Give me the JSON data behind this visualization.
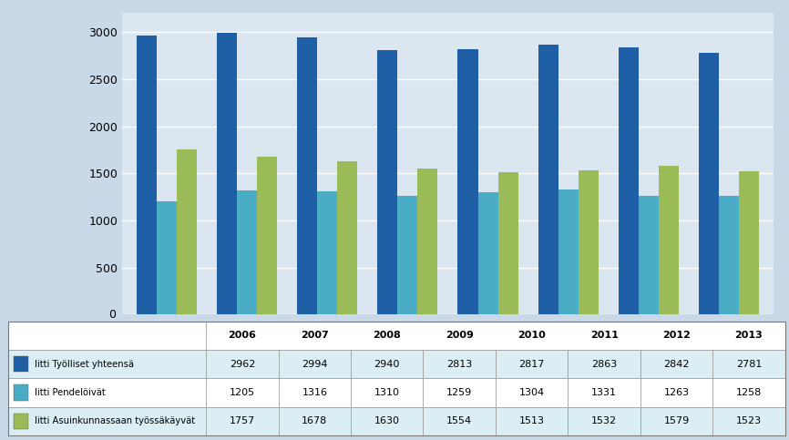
{
  "years": [
    2006,
    2007,
    2008,
    2009,
    2010,
    2011,
    2012,
    2013
  ],
  "series": [
    {
      "label": "Iitti Työlliset yhteensä",
      "values": [
        2962,
        2994,
        2940,
        2813,
        2817,
        2863,
        2842,
        2781
      ],
      "color": "#1F5FA6"
    },
    {
      "label": "Iitti Pendelöivät",
      "values": [
        1205,
        1316,
        1310,
        1259,
        1304,
        1331,
        1263,
        1258
      ],
      "color": "#4BACC6"
    },
    {
      "label": "Iitti Asuinkunnassaan työssäkäyvät",
      "values": [
        1757,
        1678,
        1630,
        1554,
        1513,
        1532,
        1579,
        1523
      ],
      "color": "#9BBB59"
    }
  ],
  "ylim": [
    0,
    3200
  ],
  "yticks": [
    0,
    500,
    1000,
    1500,
    2000,
    2500,
    3000
  ],
  "background_color": "#C9D9E8",
  "plot_background": "#DCE6F1",
  "grid_color": "#FFFFFF",
  "bar_width": 0.25,
  "legend_rows": [
    [
      "Iitti Työlliset yhteensä",
      "2962",
      "2994",
      "2940",
      "2813",
      "2817",
      "2863",
      "2842",
      "2781"
    ],
    [
      "Iitti Pendelöivät",
      "1205",
      "1316",
      "1310",
      "1259",
      "1304",
      "1331",
      "1263",
      "1258"
    ],
    [
      "Iitti Asuinkunnassaan työssäkäyvät",
      "1757",
      "1678",
      "1630",
      "1554",
      "1513",
      "1532",
      "1579",
      "1523"
    ]
  ],
  "table_bg_colors": [
    "#DAEEF3",
    "#FFFFFF",
    "#DAEEF3"
  ],
  "shelf_color": "#B8C8D8",
  "shelf_side_color": "#A0B0C0"
}
